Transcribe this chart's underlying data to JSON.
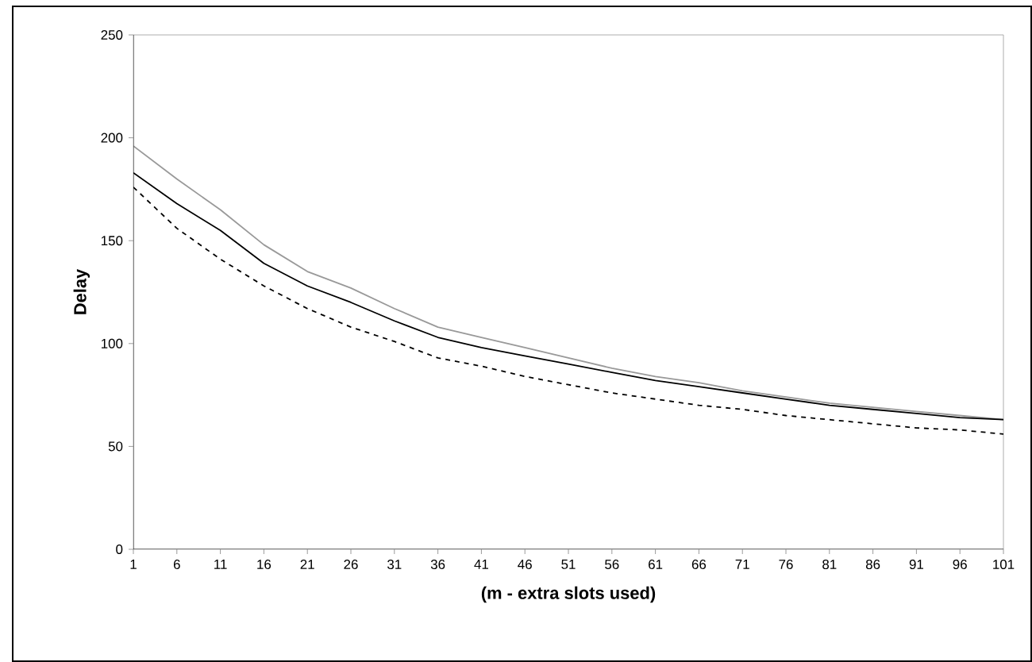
{
  "chart_data": {
    "type": "line",
    "xlabel": "(m - extra slots used)",
    "ylabel": "Delay",
    "x": [
      1,
      6,
      11,
      16,
      21,
      26,
      31,
      36,
      41,
      46,
      51,
      56,
      61,
      66,
      71,
      76,
      81,
      86,
      91,
      96,
      101
    ],
    "series": [
      {
        "color": "#999999",
        "line_style": "solid",
        "values": [
          196,
          180,
          165,
          148,
          135,
          127,
          117,
          108,
          103,
          98,
          93,
          88,
          84,
          81,
          77,
          74,
          71,
          69,
          67,
          65,
          63
        ]
      },
      {
        "color": "#000000",
        "line_style": "solid",
        "values": [
          183,
          168,
          155,
          139,
          128,
          120,
          111,
          103,
          98,
          94,
          90,
          86,
          82,
          79,
          76,
          73,
          70,
          68,
          66,
          64,
          63
        ]
      },
      {
        "color": "#000000",
        "line_style": "dashed",
        "values": [
          176,
          156,
          141,
          128,
          117,
          108,
          101,
          93,
          89,
          84,
          80,
          76,
          73,
          70,
          68,
          65,
          63,
          61,
          59,
          58,
          56
        ]
      }
    ],
    "xlim": [
      1,
      101
    ],
    "xticks": [
      1,
      6,
      11,
      16,
      21,
      26,
      31,
      36,
      41,
      46,
      51,
      56,
      61,
      66,
      71,
      76,
      81,
      86,
      91,
      96,
      101
    ],
    "ylim": [
      0,
      250
    ],
    "yticks": [
      0,
      50,
      100,
      150,
      200,
      250
    ],
    "grid": false,
    "marker": "none"
  }
}
